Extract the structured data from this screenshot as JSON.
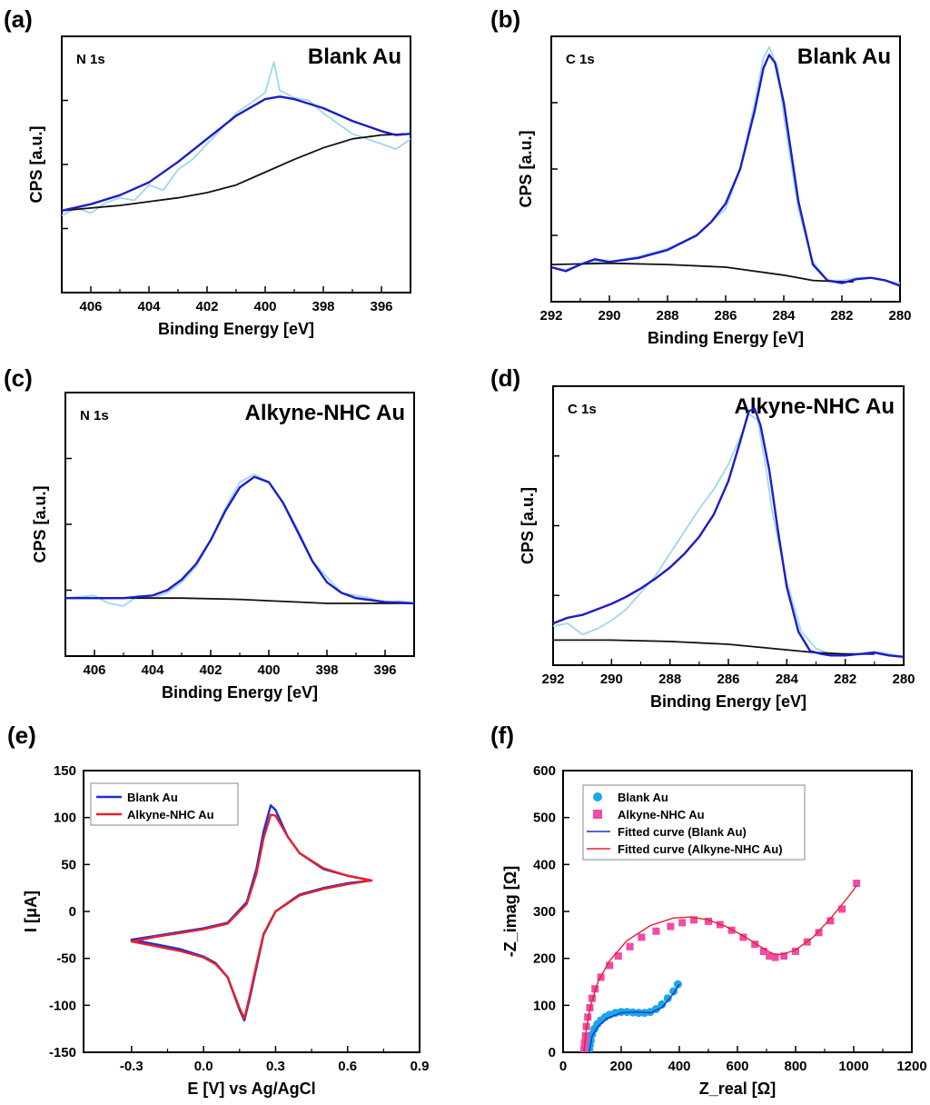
{
  "figure": {
    "panels": [
      "(a)",
      "(b)",
      "(c)",
      "(d)",
      "(e)",
      "(f)"
    ]
  },
  "chart_data": [
    {
      "id": "a",
      "type": "line",
      "panel_label": "(a)",
      "subtitle": "N 1s",
      "title": "Blank Au",
      "xlabel": "Binding Energy [eV]",
      "ylabel": "CPS [a.u.]",
      "xlim": [
        407,
        395
      ],
      "ylim": [
        0,
        1
      ],
      "xticks": [
        "406",
        "404",
        "402",
        "400",
        "398",
        "396"
      ],
      "colors": {
        "raw": "#9fd6ee",
        "fit": "#1c1cc8",
        "background": "#111111"
      },
      "series": [
        {
          "name": "raw",
          "x": [
            407,
            406.5,
            406,
            405.5,
            405,
            404.5,
            404,
            403.5,
            403,
            402.5,
            402,
            401.5,
            401,
            400.5,
            400,
            399.7,
            399.5,
            399,
            398.5,
            398,
            397.5,
            397,
            396.5,
            396,
            395.5,
            395
          ],
          "y": [
            0.3,
            0.33,
            0.31,
            0.35,
            0.37,
            0.36,
            0.42,
            0.4,
            0.48,
            0.52,
            0.58,
            0.64,
            0.7,
            0.74,
            0.78,
            0.9,
            0.79,
            0.76,
            0.75,
            0.7,
            0.66,
            0.62,
            0.6,
            0.58,
            0.56,
            0.6
          ]
        },
        {
          "name": "fit",
          "x": [
            407,
            406,
            405,
            404,
            403,
            402,
            401,
            400,
            399.5,
            399,
            398,
            397,
            396,
            395.5,
            395
          ],
          "y": [
            0.32,
            0.345,
            0.38,
            0.43,
            0.51,
            0.6,
            0.69,
            0.755,
            0.765,
            0.755,
            0.72,
            0.67,
            0.63,
            0.615,
            0.62
          ]
        },
        {
          "name": "background",
          "x": [
            407,
            406,
            405,
            404,
            403,
            402,
            401,
            400,
            399,
            398,
            397,
            396,
            395
          ],
          "y": [
            0.32,
            0.33,
            0.34,
            0.355,
            0.37,
            0.39,
            0.42,
            0.47,
            0.52,
            0.565,
            0.6,
            0.615,
            0.62
          ]
        }
      ]
    },
    {
      "id": "b",
      "type": "line",
      "panel_label": "(b)",
      "subtitle": "C 1s",
      "title": "Blank Au",
      "xlabel": "Binding Energy [eV]",
      "ylabel": "CPS [a.u.]",
      "xlim": [
        292,
        280
      ],
      "ylim": [
        0,
        1
      ],
      "xticks": [
        "292",
        "290",
        "288",
        "286",
        "284",
        "282",
        "280"
      ],
      "colors": {
        "raw": "#9fd6ee",
        "fit": "#1c1cc8",
        "background": "#111111"
      },
      "series": [
        {
          "name": "raw",
          "x": [
            292,
            291.5,
            291,
            290.5,
            290,
            289,
            288,
            287,
            286,
            285.5,
            285,
            284.7,
            284.5,
            284.2,
            284,
            283.5,
            283,
            282.5,
            282,
            281.5,
            281,
            280.5,
            280
          ],
          "y": [
            0.13,
            0.12,
            0.14,
            0.15,
            0.15,
            0.17,
            0.2,
            0.25,
            0.35,
            0.5,
            0.75,
            0.92,
            0.96,
            0.88,
            0.7,
            0.35,
            0.15,
            0.08,
            0.08,
            0.09,
            0.09,
            0.08,
            0.07
          ]
        },
        {
          "name": "fit",
          "x": [
            292,
            291.5,
            291,
            290.5,
            290,
            289,
            288,
            287,
            286.5,
            286,
            285.5,
            285,
            284.7,
            284.5,
            284.3,
            284,
            283.5,
            283,
            282.5,
            282,
            281.5,
            281,
            280.5,
            280
          ],
          "y": [
            0.13,
            0.115,
            0.14,
            0.16,
            0.15,
            0.165,
            0.195,
            0.25,
            0.3,
            0.37,
            0.5,
            0.72,
            0.88,
            0.93,
            0.9,
            0.75,
            0.38,
            0.14,
            0.08,
            0.07,
            0.085,
            0.09,
            0.08,
            0.06
          ]
        },
        {
          "name": "background",
          "x": [
            292,
            290,
            288,
            286,
            284,
            283,
            282,
            281.6
          ],
          "y": [
            0.14,
            0.145,
            0.14,
            0.13,
            0.1,
            0.08,
            0.075,
            0.075
          ]
        }
      ]
    },
    {
      "id": "c",
      "type": "line",
      "panel_label": "(c)",
      "subtitle": "N 1s",
      "title": "Alkyne-NHC Au",
      "xlabel": "Binding Energy [eV]",
      "ylabel": "CPS [a.u.]",
      "xlim": [
        407,
        395
      ],
      "ylim": [
        0,
        1
      ],
      "xticks": [
        "406",
        "404",
        "402",
        "400",
        "398",
        "396"
      ],
      "colors": {
        "raw": "#9fd6ee",
        "fit": "#1c1cc8",
        "background": "#111111"
      },
      "series": [
        {
          "name": "raw",
          "x": [
            407,
            406,
            405.5,
            405,
            404.5,
            404,
            403.5,
            403,
            402.5,
            402,
            401.5,
            401,
            400.5,
            400,
            399.5,
            399,
            398.5,
            398,
            397.5,
            397,
            396.5,
            396,
            395.5,
            395
          ],
          "y": [
            0.22,
            0.23,
            0.2,
            0.19,
            0.23,
            0.22,
            0.24,
            0.28,
            0.34,
            0.44,
            0.56,
            0.66,
            0.69,
            0.66,
            0.58,
            0.48,
            0.36,
            0.3,
            0.24,
            0.23,
            0.22,
            0.2,
            0.21,
            0.2
          ]
        },
        {
          "name": "fit",
          "x": [
            407,
            406,
            405,
            404,
            403.5,
            403,
            402.5,
            402,
            401.5,
            401,
            400.5,
            400,
            399.5,
            399,
            398.5,
            398,
            397.5,
            397,
            396,
            395
          ],
          "y": [
            0.22,
            0.22,
            0.22,
            0.23,
            0.25,
            0.29,
            0.35,
            0.44,
            0.55,
            0.64,
            0.68,
            0.66,
            0.58,
            0.47,
            0.36,
            0.28,
            0.24,
            0.22,
            0.205,
            0.2
          ]
        },
        {
          "name": "background",
          "x": [
            407,
            405,
            403,
            401,
            400,
            399,
            398,
            397,
            395
          ],
          "y": [
            0.22,
            0.22,
            0.22,
            0.215,
            0.21,
            0.205,
            0.2,
            0.2,
            0.2
          ]
        }
      ]
    },
    {
      "id": "d",
      "type": "line",
      "panel_label": "(d)",
      "subtitle": "C 1s",
      "title": "Alkyne-NHC Au",
      "xlabel": "Binding Energy [eV]",
      "ylabel": "CPS [a.u.]",
      "xlim": [
        292,
        280
      ],
      "ylim": [
        0,
        1
      ],
      "xticks": [
        "292",
        "290",
        "288",
        "286",
        "284",
        "282",
        "280"
      ],
      "colors": {
        "raw": "#9fd6ee",
        "fit": "#1c1cc8",
        "background": "#111111"
      },
      "series": [
        {
          "name": "raw",
          "x": [
            292,
            291.5,
            291,
            290.5,
            290,
            289.5,
            289,
            288.5,
            288,
            287.5,
            287,
            286.5,
            286,
            285.5,
            285.3,
            285,
            284.7,
            284.5,
            284,
            283.5,
            283,
            282.5,
            282,
            281.5,
            281,
            280.5,
            280
          ],
          "y": [
            0.14,
            0.15,
            0.11,
            0.13,
            0.16,
            0.2,
            0.26,
            0.32,
            0.4,
            0.48,
            0.56,
            0.63,
            0.72,
            0.84,
            0.9,
            0.88,
            0.7,
            0.55,
            0.3,
            0.12,
            0.06,
            0.04,
            0.04,
            0.04,
            0.05,
            0.04,
            0.03
          ]
        },
        {
          "name": "fit",
          "x": [
            292,
            291.5,
            291,
            290.5,
            290,
            289.5,
            289,
            288.5,
            288,
            287.5,
            287,
            286.5,
            286,
            285.6,
            285.3,
            285.1,
            284.9,
            284.6,
            284.3,
            284,
            283.6,
            283.2,
            282.8,
            282.5,
            282,
            281.5,
            281,
            280.5,
            280
          ],
          "y": [
            0.15,
            0.17,
            0.18,
            0.2,
            0.22,
            0.245,
            0.275,
            0.31,
            0.35,
            0.4,
            0.46,
            0.54,
            0.66,
            0.8,
            0.91,
            0.92,
            0.86,
            0.7,
            0.48,
            0.28,
            0.12,
            0.05,
            0.04,
            0.035,
            0.035,
            0.04,
            0.045,
            0.035,
            0.03
          ]
        },
        {
          "name": "background",
          "x": [
            292,
            290,
            288,
            286,
            284,
            283,
            282,
            281
          ],
          "y": [
            0.09,
            0.09,
            0.085,
            0.075,
            0.055,
            0.045,
            0.04,
            0.04
          ]
        }
      ]
    },
    {
      "id": "e",
      "type": "line",
      "panel_label": "(e)",
      "xlabel": "E [V] vs Ag/AgCl",
      "ylabel": "I [μA]",
      "xlim": [
        -0.5,
        0.9
      ],
      "ylim": [
        -150,
        150
      ],
      "xticks": [
        "-0.3",
        "0.0",
        "0.3",
        "0.6",
        "0.9"
      ],
      "yticks": [
        "-150",
        "-100",
        "-50",
        "0",
        "50",
        "100",
        "150"
      ],
      "legend": [
        "Blank Au",
        "Alkyne-NHC Au"
      ],
      "colors": {
        "Blank Au": "#1f2fd6",
        "Alkyne-NHC Au": "#e8202a"
      },
      "series": [
        {
          "name": "Blank Au",
          "x": [
            -0.3,
            -0.2,
            -0.1,
            0.0,
            0.1,
            0.18,
            0.22,
            0.25,
            0.28,
            0.3,
            0.35,
            0.4,
            0.5,
            0.6,
            0.7,
            0.6,
            0.5,
            0.4,
            0.3,
            0.25,
            0.22,
            0.19,
            0.17,
            0.15,
            0.1,
            0.05,
            0.0,
            -0.1,
            -0.2,
            -0.3
          ],
          "y": [
            -30,
            -26,
            -22,
            -18,
            -12,
            10,
            45,
            85,
            113,
            108,
            80,
            62,
            45,
            38,
            33,
            30,
            25,
            18,
            0,
            -25,
            -60,
            -95,
            -116,
            -105,
            -70,
            -55,
            -48,
            -40,
            -35,
            -30
          ]
        },
        {
          "name": "Alkyne-NHC Au",
          "x": [
            -0.3,
            -0.2,
            -0.1,
            0.0,
            0.1,
            0.18,
            0.22,
            0.25,
            0.28,
            0.3,
            0.35,
            0.4,
            0.5,
            0.6,
            0.7,
            0.6,
            0.5,
            0.4,
            0.3,
            0.25,
            0.22,
            0.19,
            0.17,
            0.15,
            0.1,
            0.05,
            0.0,
            -0.1,
            -0.2,
            -0.3
          ],
          "y": [
            -32,
            -27,
            -23,
            -19,
            -13,
            8,
            40,
            78,
            103,
            102,
            80,
            62,
            46,
            38,
            33,
            29,
            24,
            17,
            0,
            -24,
            -57,
            -92,
            -114,
            -103,
            -70,
            -56,
            -49,
            -42,
            -37,
            -32
          ]
        }
      ]
    },
    {
      "id": "f",
      "type": "scatter",
      "panel_label": "(f)",
      "xlabel": "Z_real [Ω]",
      "ylabel": "-Z_imag [Ω]",
      "xlim": [
        0,
        1200
      ],
      "ylim": [
        0,
        600
      ],
      "xticks": [
        "0",
        "200",
        "400",
        "600",
        "800",
        "1000",
        "1200"
      ],
      "yticks": [
        "0",
        "100",
        "200",
        "300",
        "400",
        "500",
        "600"
      ],
      "legend": [
        "Blank Au",
        "Alkyne-NHC Au",
        "Fitted curve (Blank Au)",
        "Fitted curve (Alkyne-NHC Au)"
      ],
      "colors": {
        "Blank Au": "#19a8e6",
        "Alkyne-NHC Au": "#f04aaa",
        "fit_blank": "#1f2fd6",
        "fit_alkyne": "#e8202a"
      },
      "series": [
        {
          "name": "Blank Au",
          "marker": "circle",
          "x": [
            90,
            92,
            95,
            100,
            108,
            118,
            130,
            145,
            160,
            180,
            200,
            220,
            240,
            260,
            280,
            300,
            320,
            340,
            360,
            380,
            395
          ],
          "y": [
            5,
            15,
            25,
            38,
            50,
            60,
            68,
            75,
            80,
            84,
            86,
            86,
            85,
            84,
            84,
            86,
            92,
            102,
            115,
            130,
            145
          ]
        },
        {
          "name": "Alkyne-NHC Au",
          "marker": "square",
          "x": [
            72,
            74,
            77,
            80,
            85,
            92,
            100,
            110,
            130,
            160,
            190,
            230,
            270,
            320,
            370,
            410,
            450,
            500,
            540,
            580,
            620,
            660,
            690,
            710,
            730,
            760,
            800,
            840,
            880,
            920,
            960,
            1010
          ],
          "y": [
            5,
            20,
            35,
            55,
            75,
            95,
            115,
            135,
            160,
            185,
            205,
            225,
            245,
            258,
            268,
            276,
            282,
            279,
            272,
            260,
            245,
            230,
            215,
            205,
            202,
            205,
            215,
            235,
            255,
            280,
            305,
            360
          ]
        },
        {
          "name": "Fitted curve (Blank Au)",
          "x": [
            90,
            100,
            120,
            150,
            200,
            250,
            300,
            340,
            380,
            400
          ],
          "y": [
            0,
            35,
            55,
            72,
            84,
            86,
            84,
            95,
            125,
            145
          ]
        },
        {
          "name": "Fitted curve (Alkyne-NHC Au)",
          "x": [
            72,
            80,
            95,
            120,
            160,
            220,
            300,
            380,
            440,
            500,
            560,
            620,
            680,
            720,
            750,
            800,
            860,
            920,
            980,
            1010
          ],
          "y": [
            0,
            50,
            100,
            150,
            195,
            238,
            270,
            286,
            288,
            282,
            268,
            248,
            225,
            210,
            208,
            218,
            245,
            285,
            330,
            355
          ]
        }
      ]
    }
  ]
}
